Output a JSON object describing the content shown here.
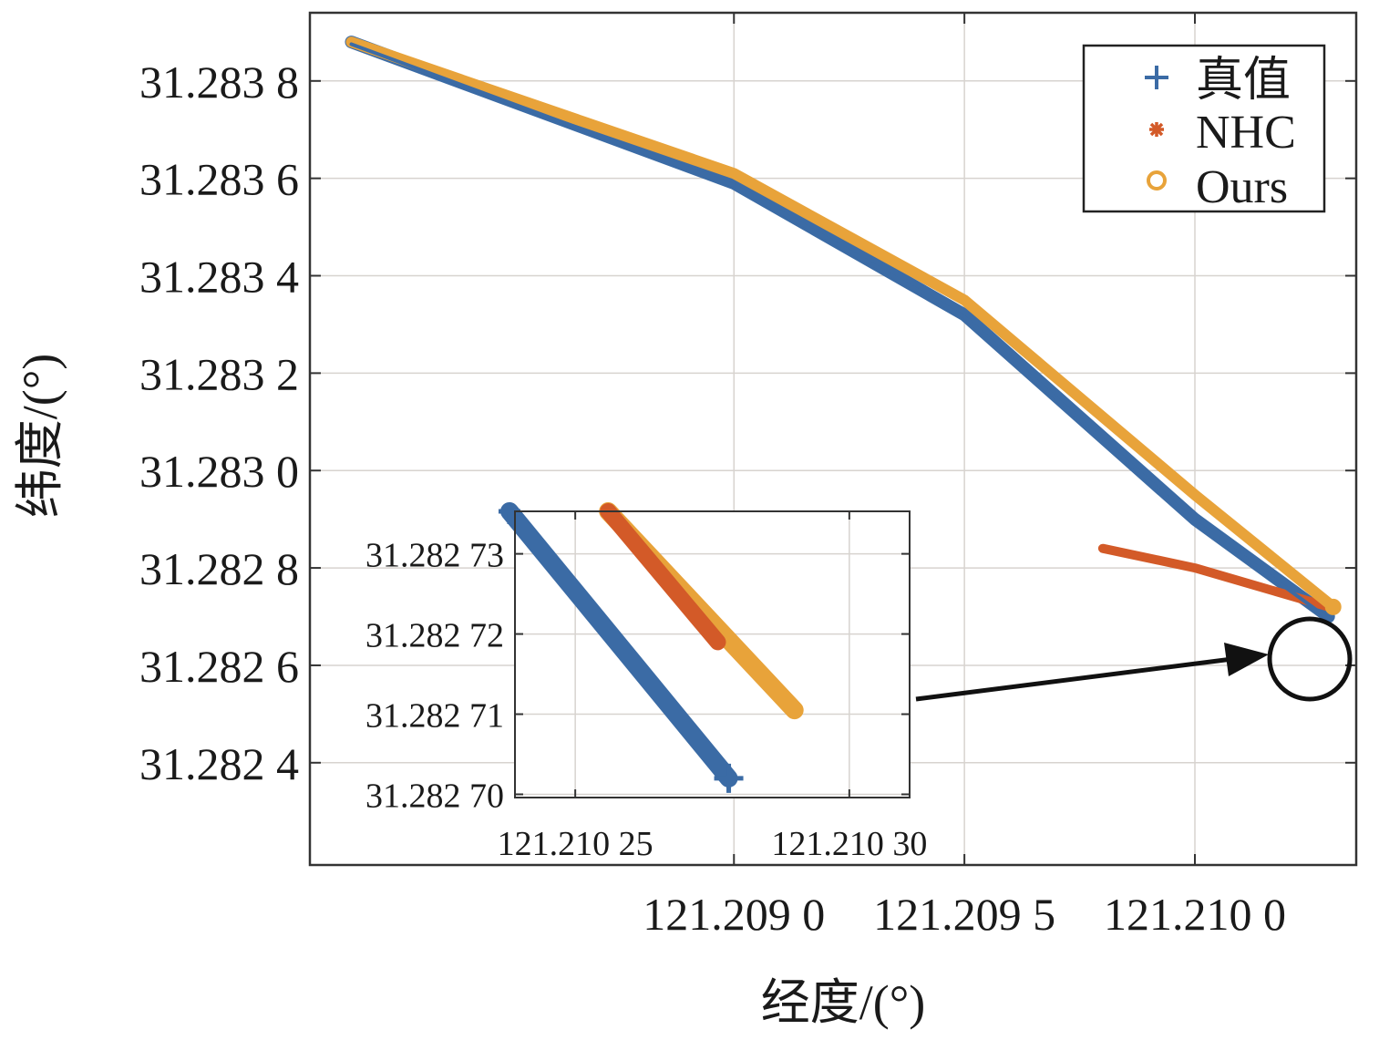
{
  "chart_data": {
    "type": "line",
    "title": "",
    "xlabel": "经度/(°)",
    "ylabel": "纬度/(°)",
    "xlim": [
      121.20808,
      121.21035
    ],
    "ylim": [
      31.28219,
      31.28394
    ],
    "xticks": [
      {
        "value": 121.209,
        "label": "121.209 0"
      },
      {
        "value": 121.2095,
        "label": "121.209 5"
      },
      {
        "value": 121.21,
        "label": "121.210 0"
      }
    ],
    "yticks": [
      {
        "value": 31.2824,
        "label": "31.282 4"
      },
      {
        "value": 31.2826,
        "label": "31.282 6"
      },
      {
        "value": 31.2828,
        "label": "31.282 8"
      },
      {
        "value": 31.283,
        "label": "31.283 0"
      },
      {
        "value": 31.2832,
        "label": "31.283 2"
      },
      {
        "value": 31.2834,
        "label": "31.283 4"
      },
      {
        "value": 31.2836,
        "label": "31.283 6"
      },
      {
        "value": 31.2838,
        "label": "31.283 8"
      }
    ],
    "grid": true,
    "legend_position": "top-right",
    "series": [
      {
        "name": "真值",
        "marker": "plus",
        "color": "#3b6ba5",
        "x": [
          121.20817,
          121.209,
          121.2095,
          121.21,
          121.21029
        ],
        "y": [
          31.28388,
          31.28359,
          31.28332,
          31.2829,
          31.2827
        ]
      },
      {
        "name": "NHC",
        "marker": "asterisk",
        "color": "#d35a28",
        "x": [
          121.2098,
          121.21,
          121.21029
        ],
        "y": [
          31.28284,
          31.2828,
          31.28272
        ]
      },
      {
        "name": "Ours",
        "marker": "circle",
        "color": "#e8a33a",
        "x": [
          121.20817,
          121.209,
          121.2095,
          121.21,
          121.2103
        ],
        "y": [
          31.28388,
          31.28361,
          31.28335,
          31.28295,
          31.28272
        ]
      }
    ],
    "inset": {
      "xlim": [
        121.210239,
        121.210311
      ],
      "ylim": [
        31.2826996,
        31.2827353
      ],
      "xticks": [
        {
          "value": 121.21025,
          "label": "121.210 25"
        },
        {
          "value": 121.2103,
          "label": "121.210 30"
        }
      ],
      "yticks": [
        {
          "value": 31.2827,
          "label": "31.282 70"
        },
        {
          "value": 31.28271,
          "label": "31.282 71"
        },
        {
          "value": 31.28272,
          "label": "31.282 72"
        },
        {
          "value": 31.28273,
          "label": "31.282 73"
        }
      ],
      "series": [
        {
          "name": "真值",
          "x": [
            121.210238,
            121.210278
          ],
          "y": [
            31.2827353,
            31.282702
          ]
        },
        {
          "name": "NHC",
          "x": [
            121.210256,
            121.210276
          ],
          "y": [
            31.2827353,
            31.282719
          ]
        },
        {
          "name": "Ours",
          "x": [
            121.210256,
            121.21029
          ],
          "y": [
            31.2827353,
            31.2827105
          ]
        }
      ]
    }
  }
}
